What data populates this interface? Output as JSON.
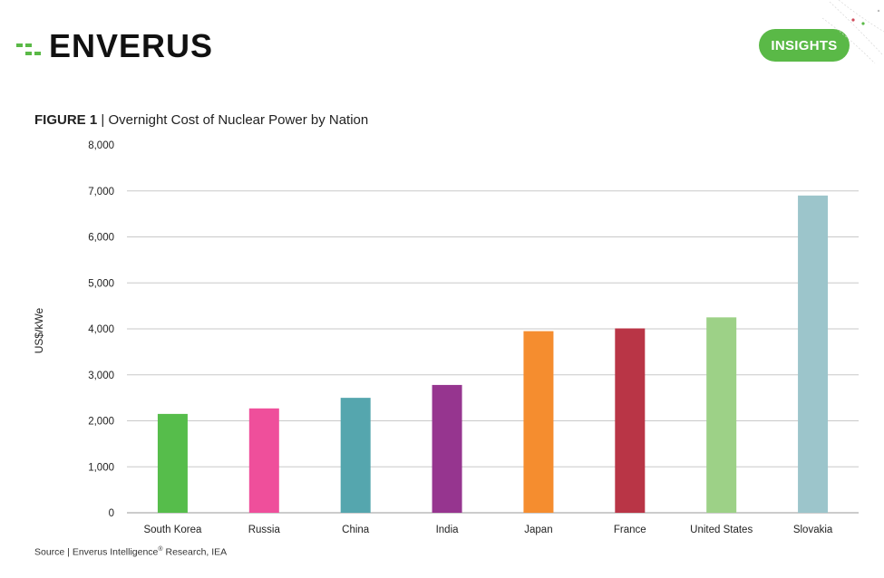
{
  "header": {
    "logo_text": "ENVERUS",
    "badge_label": "INSIGHTS",
    "badge_color": "#5ab947",
    "logo_icon": "enverus-bars-icon",
    "corner_decoration_icon": "network-dots-icon"
  },
  "figure": {
    "label": "FIGURE 1",
    "separator": "|",
    "caption": "Overnight Cost of Nuclear Power by Nation"
  },
  "source": {
    "prefix": "Source | Enverus Intelligence",
    "superscript": "®",
    "suffix": " Research, IEA"
  },
  "chart_data": {
    "type": "bar",
    "title": "Overnight Cost of Nuclear Power by Nation",
    "xlabel": "",
    "ylabel": "US$/kWe",
    "ylim": [
      0,
      8000
    ],
    "yticks": [
      0,
      1000,
      2000,
      3000,
      4000,
      5000,
      6000,
      7000,
      8000
    ],
    "ytick_labels": [
      "0",
      "1,000",
      "2,000",
      "3,000",
      "4,000",
      "5,000",
      "6,000",
      "7,000",
      "8,000"
    ],
    "grid": true,
    "categories": [
      "South Korea",
      "Russia",
      "China",
      "India",
      "Japan",
      "France",
      "United States",
      "Slovakia"
    ],
    "values": [
      2150,
      2270,
      2500,
      2780,
      3950,
      4010,
      4250,
      6900
    ],
    "colors": [
      "#56bd4b",
      "#ef4f9b",
      "#55a6ae",
      "#96358f",
      "#f58d2f",
      "#b93546",
      "#9dd187",
      "#9cc5cb"
    ]
  }
}
